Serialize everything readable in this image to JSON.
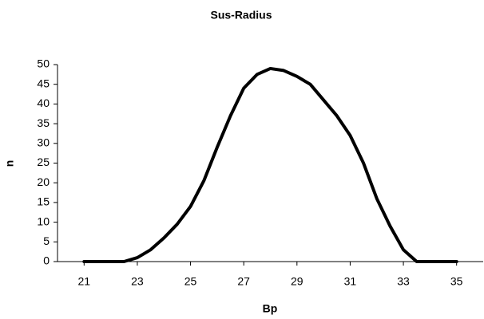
{
  "chart_data": {
    "type": "line",
    "title": "Sus-Radius",
    "x_label": "Bp",
    "y_label": "n",
    "x": [
      21,
      21.5,
      22,
      22.5,
      23,
      23.5,
      24,
      24.5,
      25,
      25.5,
      26,
      26.5,
      27,
      27.5,
      28,
      28.5,
      29,
      29.5,
      30,
      30.5,
      31,
      31.5,
      32,
      32.5,
      33,
      33.5,
      34,
      34.5,
      35
    ],
    "series": [
      {
        "name": "n",
        "color": "#000000",
        "values": [
          0,
          0,
          0,
          0,
          1,
          3,
          6,
          9.5,
          14,
          20.5,
          29,
          37,
          44,
          47.5,
          49,
          48.5,
          47,
          45,
          41,
          37,
          32,
          25,
          16,
          9,
          3,
          0,
          0,
          0,
          0
        ]
      }
    ],
    "xlim": [
      20,
      36
    ],
    "xticks": [
      21,
      23,
      25,
      27,
      29,
      31,
      33,
      35
    ],
    "ylim": [
      0,
      50
    ],
    "yticks": [
      0,
      5,
      10,
      15,
      20,
      25,
      30,
      35,
      40,
      45,
      50
    ],
    "grid": false
  }
}
